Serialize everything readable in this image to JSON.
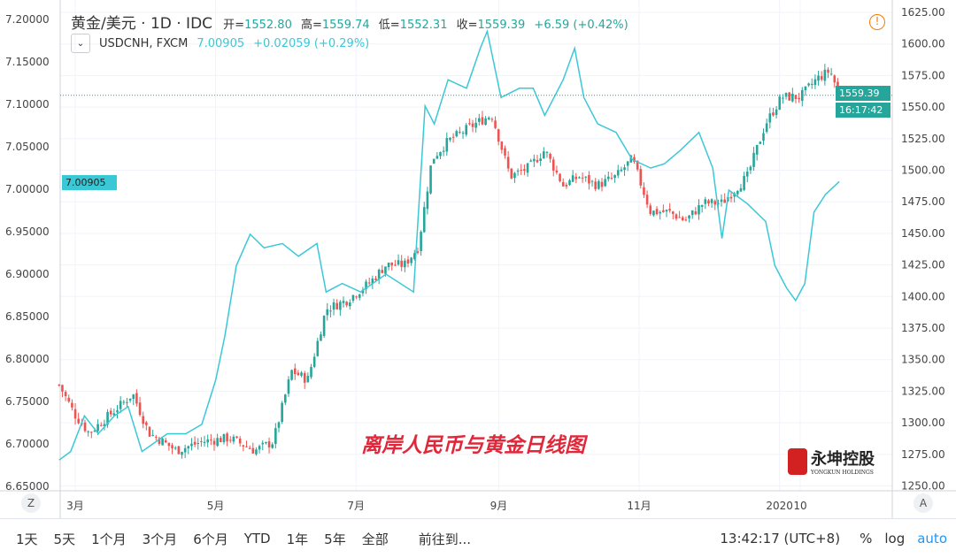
{
  "header": {
    "symbol": "黄金/美元 · 1D · IDC",
    "open_label": "开=",
    "open": "1552.80",
    "high_label": "高=",
    "high": "1559.74",
    "low_label": "低=",
    "low": "1552.31",
    "close_label": "收=",
    "close": "1559.39",
    "change": "+6.59 (+0.42%)"
  },
  "overlay": {
    "symbol": "USDCNH, FXCM",
    "value": "7.00905",
    "change": "+0.02059 (+0.29%)"
  },
  "price_labels": {
    "gold_last": "1559.39",
    "countdown": "16:17:42",
    "usdcnh_last": "7.00905"
  },
  "annotation": "离岸人民币与黄金日线图",
  "logo": {
    "cn": "永坤控股",
    "en": "YONGKUN HOLDINGS"
  },
  "time_axis": {
    "z": "Z",
    "a": "A"
  },
  "bottom_bar": {
    "ranges": [
      "1天",
      "5天",
      "1个月",
      "3个月",
      "6个月",
      "YTD",
      "1年",
      "5年",
      "全部"
    ],
    "goto": "前往到...",
    "clock": "13:42:17 (UTC+8)",
    "percent": "%",
    "log": "log",
    "auto": "auto"
  },
  "colors": {
    "up": "#26a69a",
    "down": "#ef5350",
    "usdcnh": "#3bc8d6",
    "accent": "#2196f3"
  },
  "chart_data": {
    "type": "line",
    "x_ticks": [
      {
        "label": "3月",
        "date": "2019-03-01"
      },
      {
        "label": "5月",
        "date": "2019-05-01"
      },
      {
        "label": "7月",
        "date": "2019-07-01"
      },
      {
        "label": "9月",
        "date": "2019-09-01"
      },
      {
        "label": "11月",
        "date": "2019-11-01"
      },
      {
        "label": "2020",
        "date": "2020-01-01"
      },
      {
        "label": "10",
        "date": "2020-01-10"
      }
    ],
    "right_axis": {
      "ylim": [
        1250,
        1625
      ],
      "ticks": [
        "1625.00",
        "1600.00",
        "1575.00",
        "1550.00",
        "1525.00",
        "1500.00",
        "1475.00",
        "1450.00",
        "1425.00",
        "1400.00",
        "1375.00",
        "1350.00",
        "1325.00",
        "1300.00",
        "1275.00",
        "1250.00"
      ]
    },
    "left_axis": {
      "ylim": [
        6.65,
        7.2
      ],
      "ticks": [
        "7.20000",
        "7.15000",
        "7.10000",
        "7.05000",
        "7.00000",
        "6.95000",
        "6.90000",
        "6.85000",
        "6.80000",
        "6.75000",
        "6.70000",
        "6.65000"
      ]
    },
    "series": [
      {
        "name": "黄金/美元",
        "style": "candlestick",
        "axis": "right",
        "points": [
          [
            "2019-02-22",
            1330
          ],
          [
            "2019-03-01",
            1306
          ],
          [
            "2019-03-07",
            1292
          ],
          [
            "2019-03-22",
            1316
          ],
          [
            "2019-03-26",
            1323
          ],
          [
            "2019-04-02",
            1292
          ],
          [
            "2019-04-14",
            1278
          ],
          [
            "2019-04-25",
            1285
          ],
          [
            "2019-05-07",
            1288
          ],
          [
            "2019-05-18",
            1278
          ],
          [
            "2019-05-26",
            1285
          ],
          [
            "2019-06-03",
            1341
          ],
          [
            "2019-06-10",
            1334
          ],
          [
            "2019-06-18",
            1390
          ],
          [
            "2019-06-27",
            1397
          ],
          [
            "2019-07-07",
            1411
          ],
          [
            "2019-07-14",
            1425
          ],
          [
            "2019-07-22",
            1425
          ],
          [
            "2019-07-28",
            1439
          ],
          [
            "2019-08-03",
            1509
          ],
          [
            "2019-08-10",
            1523
          ],
          [
            "2019-08-22",
            1537
          ],
          [
            "2019-08-29",
            1544
          ],
          [
            "2019-09-06",
            1495
          ],
          [
            "2019-09-14",
            1502
          ],
          [
            "2019-09-21",
            1516
          ],
          [
            "2019-09-29",
            1488
          ],
          [
            "2019-10-06",
            1495
          ],
          [
            "2019-10-14",
            1488
          ],
          [
            "2019-10-22",
            1495
          ],
          [
            "2019-10-29",
            1509
          ],
          [
            "2019-11-06",
            1467
          ],
          [
            "2019-11-14",
            1467
          ],
          [
            "2019-11-21",
            1460
          ],
          [
            "2019-11-29",
            1474
          ],
          [
            "2019-12-07",
            1474
          ],
          [
            "2019-12-18",
            1495
          ],
          [
            "2019-12-26",
            1537
          ],
          [
            "2020-01-02",
            1558
          ],
          [
            "2020-01-10",
            1558
          ],
          [
            "2020-01-17",
            1572
          ],
          [
            "2020-01-23",
            1579
          ],
          [
            "2020-01-27",
            1559.39
          ]
        ]
      },
      {
        "name": "USDCNH, FXCM",
        "style": "line",
        "axis": "left",
        "points": [
          [
            "2019-02-22",
            6.681
          ],
          [
            "2019-02-27",
            6.691
          ],
          [
            "2019-03-05",
            6.733
          ],
          [
            "2019-03-11",
            6.712
          ],
          [
            "2019-03-18",
            6.733
          ],
          [
            "2019-03-24",
            6.744
          ],
          [
            "2019-03-30",
            6.691
          ],
          [
            "2019-04-10",
            6.712
          ],
          [
            "2019-04-18",
            6.712
          ],
          [
            "2019-04-25",
            6.723
          ],
          [
            "2019-05-01",
            6.775
          ],
          [
            "2019-05-05",
            6.827
          ],
          [
            "2019-05-10",
            6.91
          ],
          [
            "2019-05-16",
            6.947
          ],
          [
            "2019-05-22",
            6.931
          ],
          [
            "2019-05-30",
            6.936
          ],
          [
            "2019-06-06",
            6.921
          ],
          [
            "2019-06-14",
            6.936
          ],
          [
            "2019-06-18",
            6.879
          ],
          [
            "2019-06-25",
            6.889
          ],
          [
            "2019-07-03",
            6.879
          ],
          [
            "2019-07-14",
            6.9
          ],
          [
            "2019-07-26",
            6.879
          ],
          [
            "2019-07-31",
            7.098
          ],
          [
            "2019-08-04",
            7.077
          ],
          [
            "2019-08-10",
            7.129
          ],
          [
            "2019-08-18",
            7.119
          ],
          [
            "2019-08-24",
            7.166
          ],
          [
            "2019-08-27",
            7.186
          ],
          [
            "2019-09-02",
            7.108
          ],
          [
            "2019-09-10",
            7.119
          ],
          [
            "2019-09-16",
            7.119
          ],
          [
            "2019-09-21",
            7.087
          ],
          [
            "2019-09-29",
            7.129
          ],
          [
            "2019-10-04",
            7.166
          ],
          [
            "2019-10-08",
            7.108
          ],
          [
            "2019-10-14",
            7.077
          ],
          [
            "2019-10-22",
            7.067
          ],
          [
            "2019-10-29",
            7.035
          ],
          [
            "2019-11-06",
            7.025
          ],
          [
            "2019-11-12",
            7.03
          ],
          [
            "2019-11-19",
            7.046
          ],
          [
            "2019-11-27",
            7.067
          ],
          [
            "2019-12-03",
            7.025
          ],
          [
            "2019-12-07",
            6.942
          ],
          [
            "2019-12-10",
            6.999
          ],
          [
            "2019-12-18",
            6.983
          ],
          [
            "2019-12-26",
            6.962
          ],
          [
            "2019-12-30",
            6.91
          ],
          [
            "2020-01-04",
            6.884
          ],
          [
            "2020-01-08",
            6.869
          ],
          [
            "2020-01-12",
            6.889
          ],
          [
            "2020-01-16",
            6.973
          ],
          [
            "2020-01-21",
            6.994
          ],
          [
            "2020-01-27",
            7.00905
          ]
        ]
      }
    ],
    "grid": true
  }
}
